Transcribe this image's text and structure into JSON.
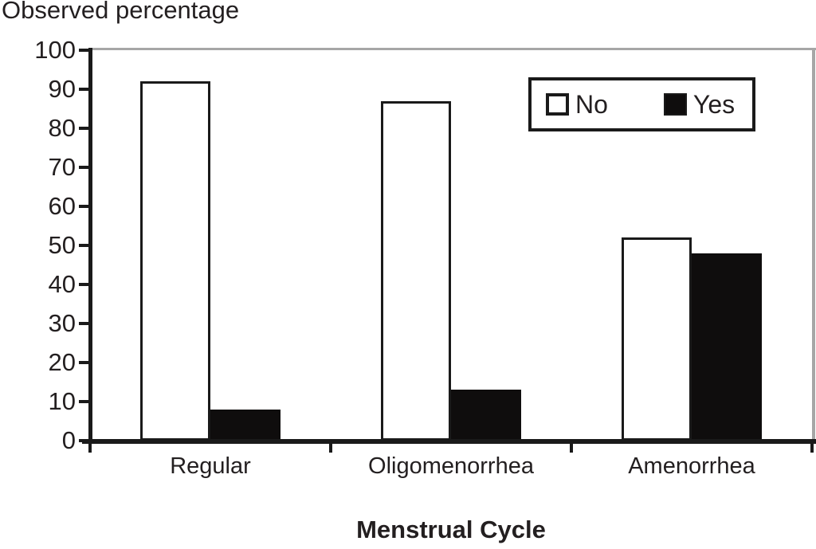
{
  "chart_data": {
    "type": "bar",
    "title": "",
    "ylabel": "Observed percentage",
    "xlabel": "Menstrual Cycle",
    "categories": [
      "Regular",
      "Oligomenorrhea",
      "Amenorrhea"
    ],
    "series": [
      {
        "name": "No",
        "fill": "#ffffff",
        "values": [
          92,
          87,
          52
        ]
      },
      {
        "name": "Yes",
        "fill": "#0f0d0d",
        "values": [
          8,
          13,
          48
        ]
      }
    ],
    "ylim": [
      0,
      100
    ],
    "ytick_step": 10,
    "yticks": [
      0,
      10,
      20,
      30,
      40,
      50,
      60,
      70,
      80,
      90,
      100
    ],
    "grid": false,
    "legend_position": "top-right"
  },
  "colors": {
    "text": "#231f20",
    "axis": "#1a1a1a",
    "frame_gray": "#a6a6a6",
    "bar_outline": "#1a1a1a"
  }
}
